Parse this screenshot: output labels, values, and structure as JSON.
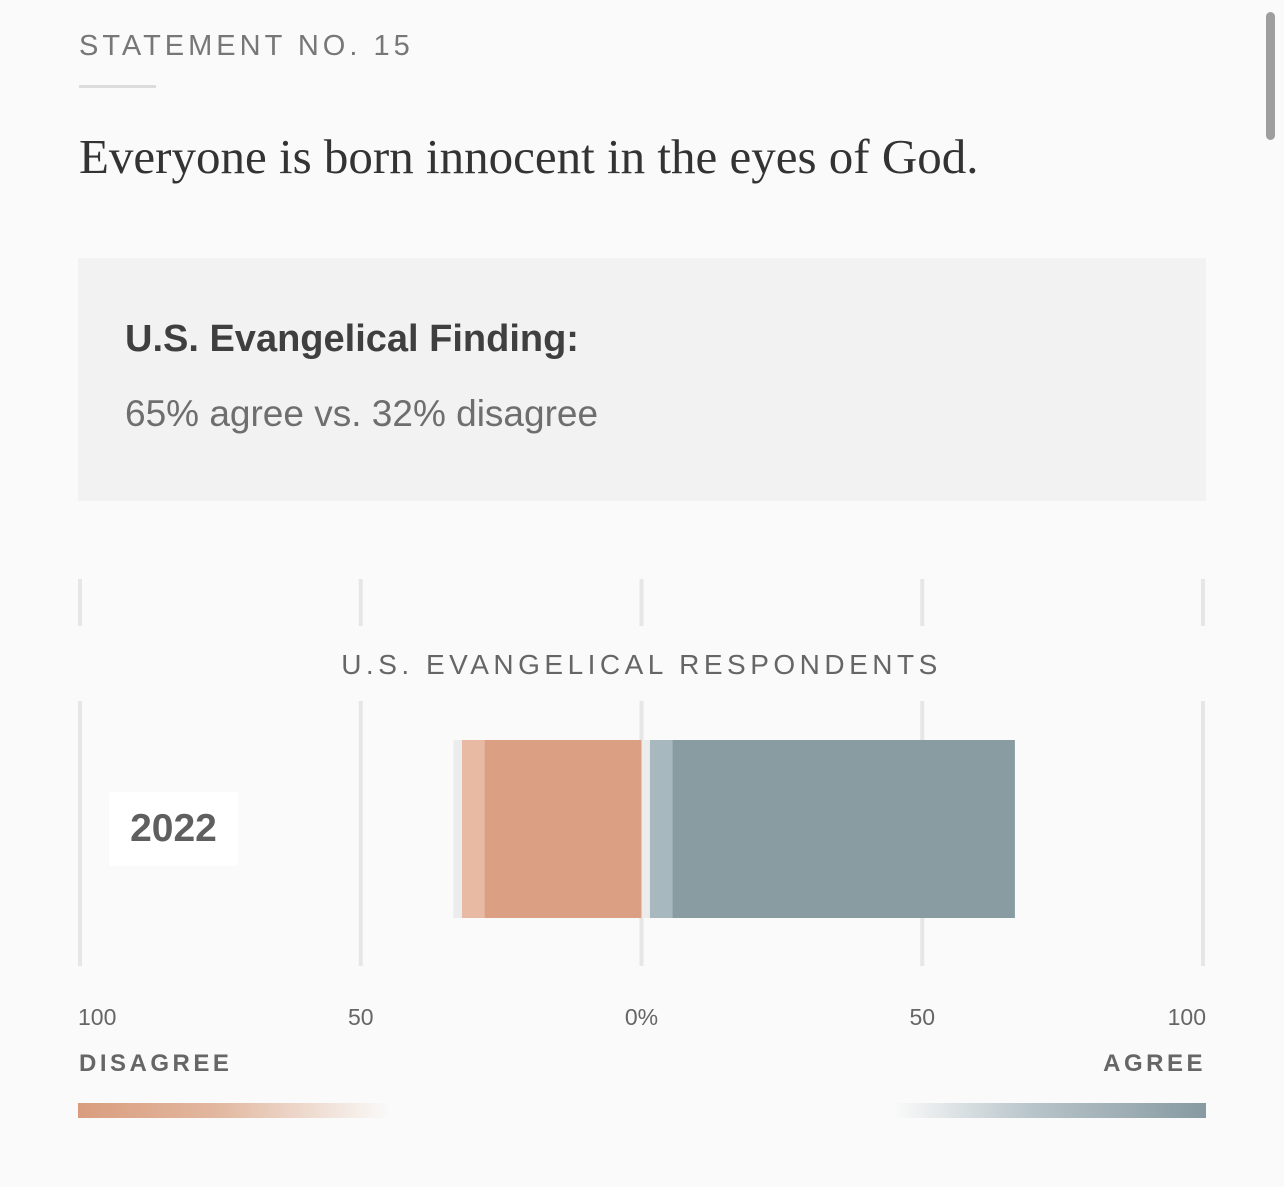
{
  "header": {
    "eyebrow": "STATEMENT NO. 15",
    "statement": "Everyone is born innocent in the eyes of God."
  },
  "finding": {
    "heading": "U.S. Evangelical Finding:",
    "text": "65% agree vs. 32% disagree"
  },
  "chart_data": {
    "type": "bar",
    "orientation": "horizontal-diverging",
    "title": "U.S. EVANGELICAL RESPONDENTS",
    "categories": [
      "2022"
    ],
    "series": [
      {
        "name": "",
        "color": "#dba084",
        "side": "disagree",
        "values": [
          28
        ]
      },
      {
        "name": "",
        "color": "#e8b9a3",
        "side": "disagree",
        "values": [
          4
        ]
      },
      {
        "name": "",
        "color": "#ececec",
        "side": "disagree",
        "values": [
          1.5
        ]
      },
      {
        "name": "",
        "color": "#ececec",
        "side": "agree",
        "values": [
          1.5
        ]
      },
      {
        "name": "",
        "color": "#a7b8be",
        "side": "agree",
        "values": [
          4
        ]
      },
      {
        "name": "",
        "color": "#889ca2",
        "side": "agree",
        "values": [
          61
        ]
      }
    ],
    "xlim": [
      -100,
      100
    ],
    "tick_values": [
      -100,
      -50,
      0,
      50,
      100
    ],
    "tick_labels": [
      "100",
      "50",
      "0%",
      "50",
      "100"
    ],
    "left_label": "DISAGREE",
    "right_label": "AGREE",
    "colors": {
      "disagree": "#d99d7e",
      "agree": "#879aa1",
      "gridline": "#e6e6e6"
    }
  }
}
